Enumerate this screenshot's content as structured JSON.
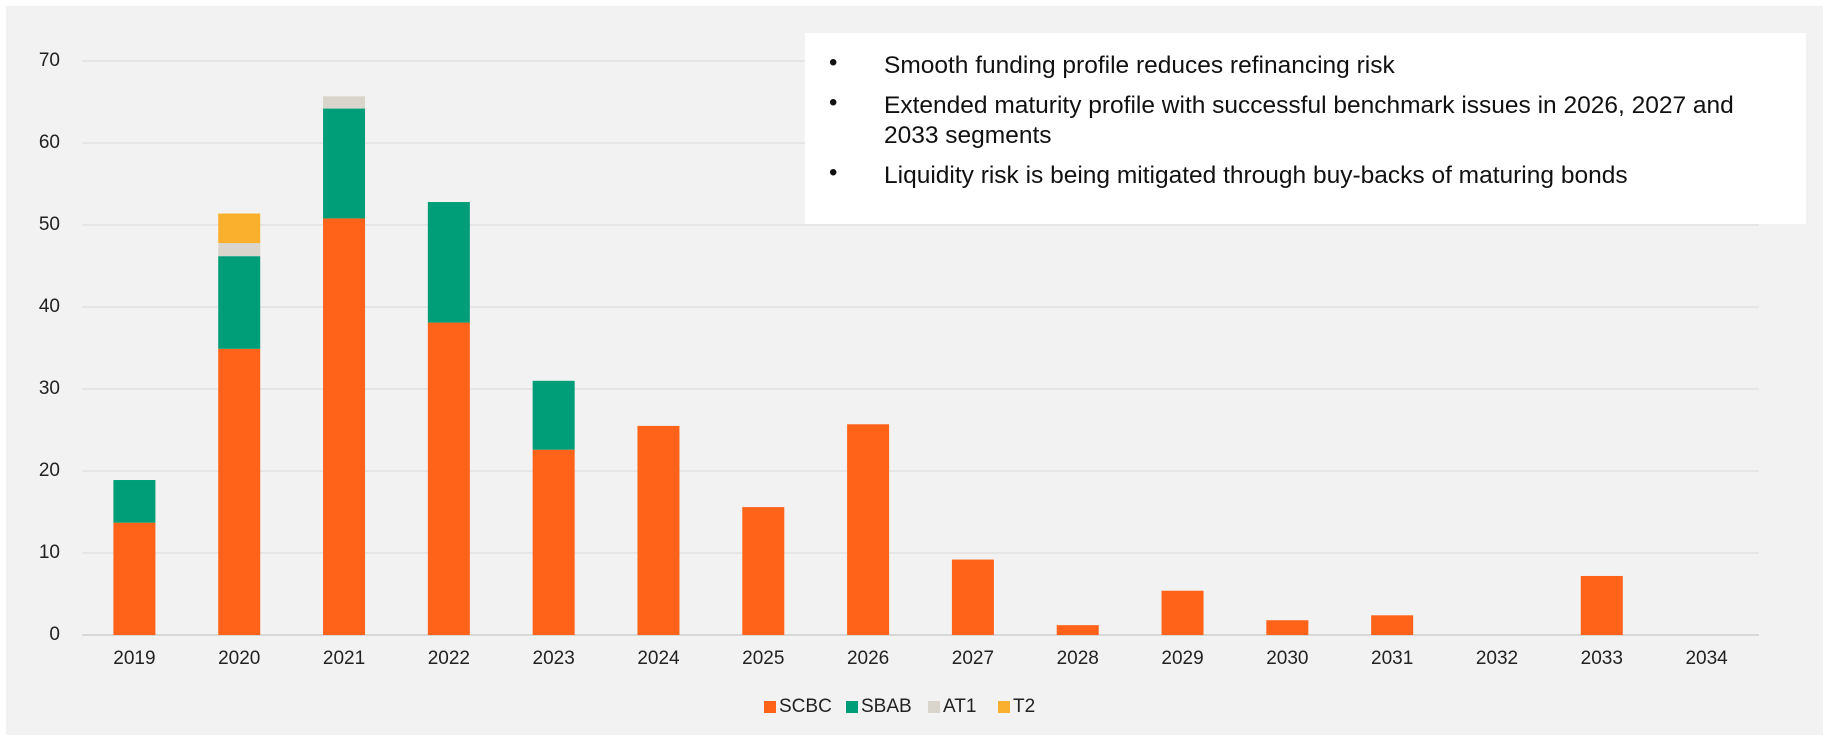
{
  "chart_data": {
    "type": "bar",
    "stacked": true,
    "categories": [
      "2019",
      "2020",
      "2021",
      "2022",
      "2023",
      "2024",
      "2025",
      "2026",
      "2027",
      "2028",
      "2029",
      "2030",
      "2031",
      "2032",
      "2033",
      "2034"
    ],
    "series": [
      {
        "name": "SCBC",
        "color": "#ff6319",
        "values": [
          13.7,
          34.9,
          50.8,
          38.1,
          22.6,
          25.5,
          15.6,
          25.7,
          9.2,
          1.2,
          5.4,
          1.8,
          2.4,
          0,
          7.2,
          0
        ]
      },
      {
        "name": "SBAB",
        "color": "#009e78",
        "values": [
          5.2,
          11.3,
          13.4,
          14.7,
          8.4,
          null,
          null,
          null,
          null,
          null,
          null,
          null,
          null,
          null,
          null,
          null
        ]
      },
      {
        "name": "AT1",
        "color": "#d9d5cc",
        "values": [
          null,
          1.6,
          1.5,
          null,
          null,
          null,
          null,
          null,
          null,
          null,
          null,
          null,
          null,
          null,
          null,
          null
        ]
      },
      {
        "name": "T2",
        "color": "#fbb02d",
        "values": [
          null,
          3.6,
          null,
          null,
          null,
          null,
          null,
          null,
          null,
          null,
          null,
          null,
          null,
          null,
          null,
          null
        ]
      }
    ],
    "ylim": [
      0,
      70
    ],
    "yticks": [
      0,
      10,
      20,
      30,
      40,
      50,
      60,
      70
    ],
    "grid": true,
    "legend": "bottom",
    "annotations": [
      "Smooth funding profile reduces refinancing risk",
      "Extended maturity profile with successful benchmark issues in 2026, 2027 and 2033 segments",
      "Liquidity risk is being mitigated through buy-backs of maturing bonds"
    ]
  }
}
